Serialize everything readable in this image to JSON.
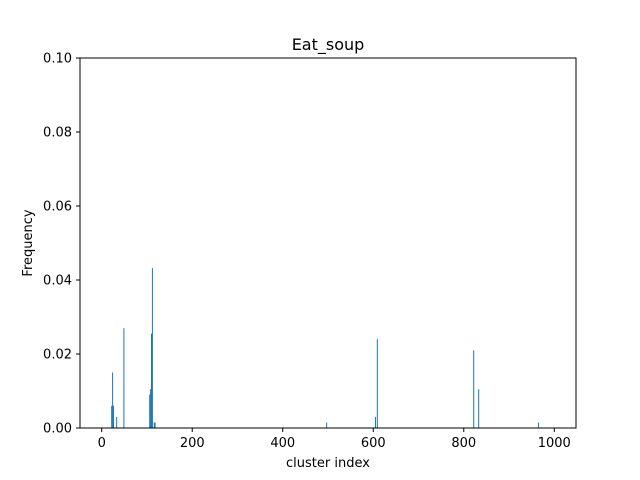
{
  "chart_data": {
    "type": "bar",
    "title": "Eat_soup",
    "xlabel": "cluster index",
    "ylabel": "Frequency",
    "xlim": [
      -48,
      1048
    ],
    "ylim": [
      0,
      0.1
    ],
    "xticks": [
      0,
      200,
      400,
      600,
      800,
      1000
    ],
    "xtick_labels": [
      "0",
      "200",
      "400",
      "600",
      "800",
      "1000"
    ],
    "yticks": [
      0,
      0.02,
      0.04,
      0.06,
      0.08,
      0.1
    ],
    "ytick_labels": [
      "0.00",
      "0.02",
      "0.04",
      "0.06",
      "0.08",
      "0.10"
    ],
    "grid": false,
    "bar_color": "#1f77b4",
    "x": [
      22,
      24,
      26,
      33,
      49,
      106,
      108,
      110,
      112,
      116,
      118,
      497,
      605,
      609,
      822,
      833,
      965
    ],
    "values": [
      0.006,
      0.015,
      0.006,
      0.003,
      0.027,
      0.009,
      0.0105,
      0.0255,
      0.0432,
      0.0015,
      0.0015,
      0.0015,
      0.003,
      0.024,
      0.021,
      0.0105,
      0.0015
    ]
  }
}
